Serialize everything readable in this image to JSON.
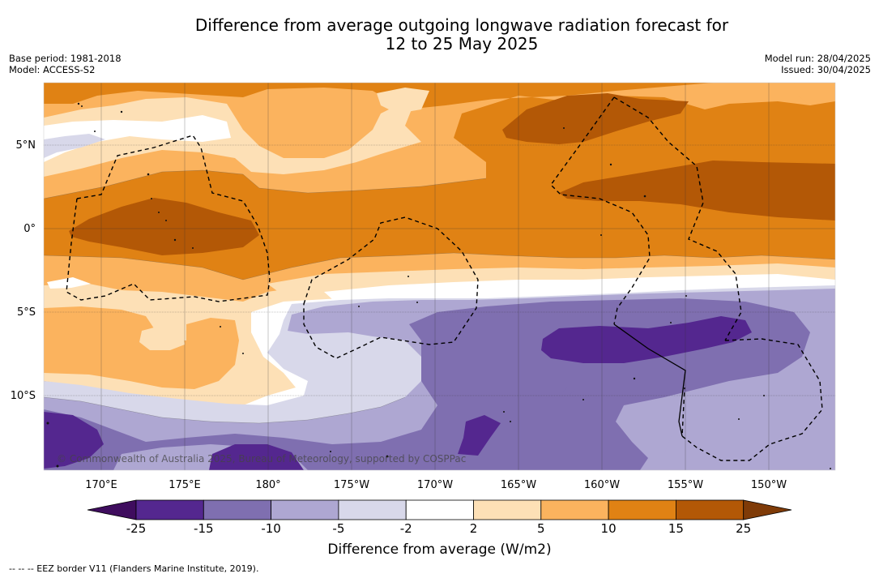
{
  "header": {
    "title_line1": "Difference from average outgoing longwave radiation forecast for",
    "title_line2": "12 to 25 May 2025",
    "base_period": "Base period: 1981-2018",
    "model": "Model: ACCESS-S2",
    "model_run": "Model run: 28/04/2025",
    "issued": "Issued: 30/04/2025"
  },
  "map": {
    "copyright": "© Commonwealth of Australia 2025, Bureau of Meteorology, supported by COSPPac",
    "lat_labels": [
      "5°N",
      "0°",
      "5°S",
      "10°S"
    ],
    "lon_labels": [
      "170°E",
      "175°E",
      "180°",
      "175°W",
      "170°W",
      "165°W",
      "160°W",
      "155°W",
      "150°W"
    ]
  },
  "colorbar": {
    "labels": [
      "-25",
      "-15",
      "-10",
      "-5",
      "-2",
      "2",
      "5",
      "10",
      "15",
      "25"
    ],
    "colors": [
      "#3f0d5e",
      "#54278f",
      "#7f6fb0",
      "#aea7d2",
      "#d8d8ea",
      "#ffffff",
      "#fde0b6",
      "#fbb35e",
      "#e08214",
      "#b35806",
      "#7f3b08"
    ],
    "title": "Difference from average (W/m2)"
  },
  "footer": {
    "eez_legend": "--  --  -- EEZ border V11 (Flanders Marine Institute, 2019)."
  }
}
